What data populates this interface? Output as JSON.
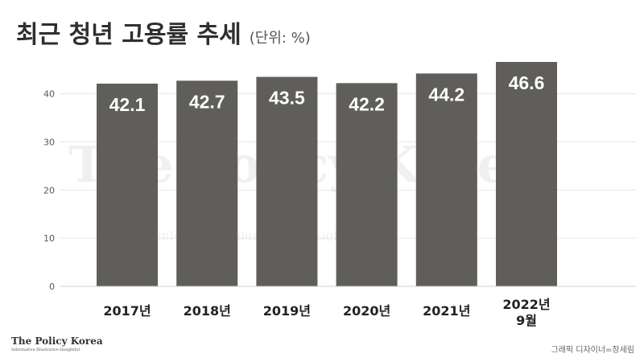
{
  "header": {
    "title": "최근 청년 고용률 추세",
    "unit_note": "(단위: %)"
  },
  "watermark": {
    "text": "The Policy Korea",
    "tagline": "Informative·Illustrative·Insightful"
  },
  "footer": {
    "logo_name": "The Policy Korea",
    "logo_tagline": "Informative·Illustrative·Insightful",
    "credit": "그래픽 디자이너=장세림"
  },
  "colors": {
    "bar": "#5f5e5a",
    "bar_label": "#ffffff",
    "grid": "#e6e6e6",
    "axis_text": "#555555"
  },
  "chart_data": {
    "type": "bar",
    "title": "최근 청년 고용률 추세",
    "subtitle": "(단위: %)",
    "categories": [
      "2017년",
      "2018년",
      "2019년",
      "2020년",
      "2021년",
      "2022년\n9월"
    ],
    "values": [
      42.1,
      42.7,
      43.5,
      42.2,
      44.2,
      46.6
    ],
    "value_labels": [
      "42.1",
      "42.7",
      "43.5",
      "42.2",
      "44.2",
      "46.6"
    ],
    "yticks": [
      "0",
      "10",
      "20",
      "30",
      "40"
    ],
    "ylim": [
      0,
      46.6
    ],
    "grid": true,
    "legend": false
  }
}
